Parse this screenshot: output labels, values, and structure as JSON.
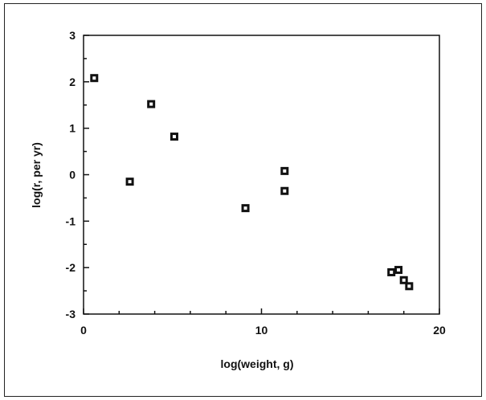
{
  "chart_data": {
    "type": "scatter",
    "title": "",
    "xlabel": "log(weight,  g)",
    "ylabel": "log(r,  per yr)",
    "xlim": [
      0,
      20
    ],
    "ylim": [
      -3,
      3
    ],
    "xticks": [
      0,
      10,
      20
    ],
    "yticks": [
      3,
      2,
      1,
      0,
      -1,
      -2,
      -3
    ],
    "grid": false,
    "legend": "none",
    "marker": "square",
    "points": [
      {
        "x": 0.6,
        "y": 2.08
      },
      {
        "x": 2.6,
        "y": -0.15
      },
      {
        "x": 3.8,
        "y": 1.52
      },
      {
        "x": 5.1,
        "y": 0.82
      },
      {
        "x": 9.1,
        "y": -0.72
      },
      {
        "x": 11.3,
        "y": 0.08
      },
      {
        "x": 11.3,
        "y": -0.35
      },
      {
        "x": 17.3,
        "y": -2.1
      },
      {
        "x": 17.7,
        "y": -2.05
      },
      {
        "x": 18.0,
        "y": -2.27
      },
      {
        "x": 18.3,
        "y": -2.4
      }
    ]
  }
}
